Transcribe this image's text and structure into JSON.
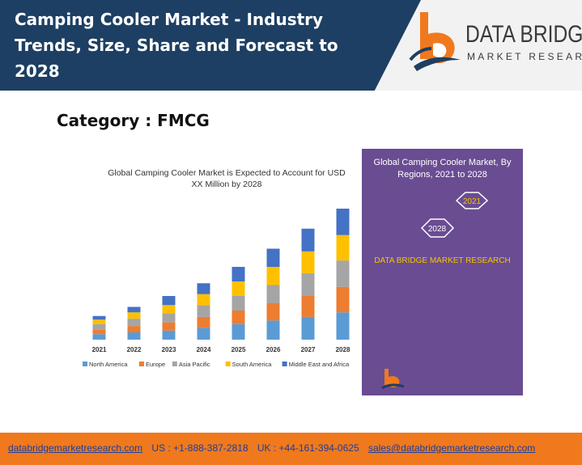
{
  "header": {
    "title": "Camping Cooler Market - Industry Trends, Size, Share and Forecast to 2028"
  },
  "logo": {
    "line1": "DATA BRIDGE",
    "line2": "MARKET RESEARCH",
    "colors": {
      "orange": "#f0791e",
      "navy": "#1d3f63"
    }
  },
  "category": "Category : FMCG",
  "chart_data": {
    "type": "bar",
    "stacked": true,
    "title": "Global Camping Cooler Market is Expected to Account for USD XX Million by 2028",
    "categories": [
      "2021",
      "2022",
      "2023",
      "2024",
      "2025",
      "2026",
      "2027",
      "2028"
    ],
    "series": [
      {
        "name": "North America",
        "color": "#5b9bd5",
        "values": [
          6,
          8,
          10,
          13,
          17,
          21,
          25,
          30
        ]
      },
      {
        "name": "Europe",
        "color": "#ed7d31",
        "values": [
          5,
          7,
          9,
          12,
          15,
          19,
          23,
          28
        ]
      },
      {
        "name": "Asia Pacific",
        "color": "#a5a5a5",
        "values": [
          6,
          8,
          10,
          13,
          16,
          20,
          25,
          29
        ]
      },
      {
        "name": "South America",
        "color": "#ffc000",
        "values": [
          5,
          7,
          9,
          12,
          16,
          20,
          24,
          28
        ]
      },
      {
        "name": "Middle East and Africa",
        "color": "#4472c4",
        "values": [
          4,
          6,
          10,
          12,
          16,
          20,
          25,
          29
        ]
      }
    ],
    "grid": false,
    "legend": "bottom"
  },
  "side_panel": {
    "title": "Global Camping Cooler Market, By Regions, 2021 to 2028",
    "hex_2021": "2021",
    "hex_2028": "2028",
    "brand": "DATA BRIDGE MARKET RESEARCH",
    "colors": {
      "background": "#6a4c93",
      "accent": "#f5c400"
    }
  },
  "footer": {
    "website": "databridgemarketresearch.com",
    "us_phone": "US : +1-888-387-2818",
    "uk_phone": "UK : +44-161-394-0625",
    "email": "sales@databridgemarketresearch.com"
  }
}
